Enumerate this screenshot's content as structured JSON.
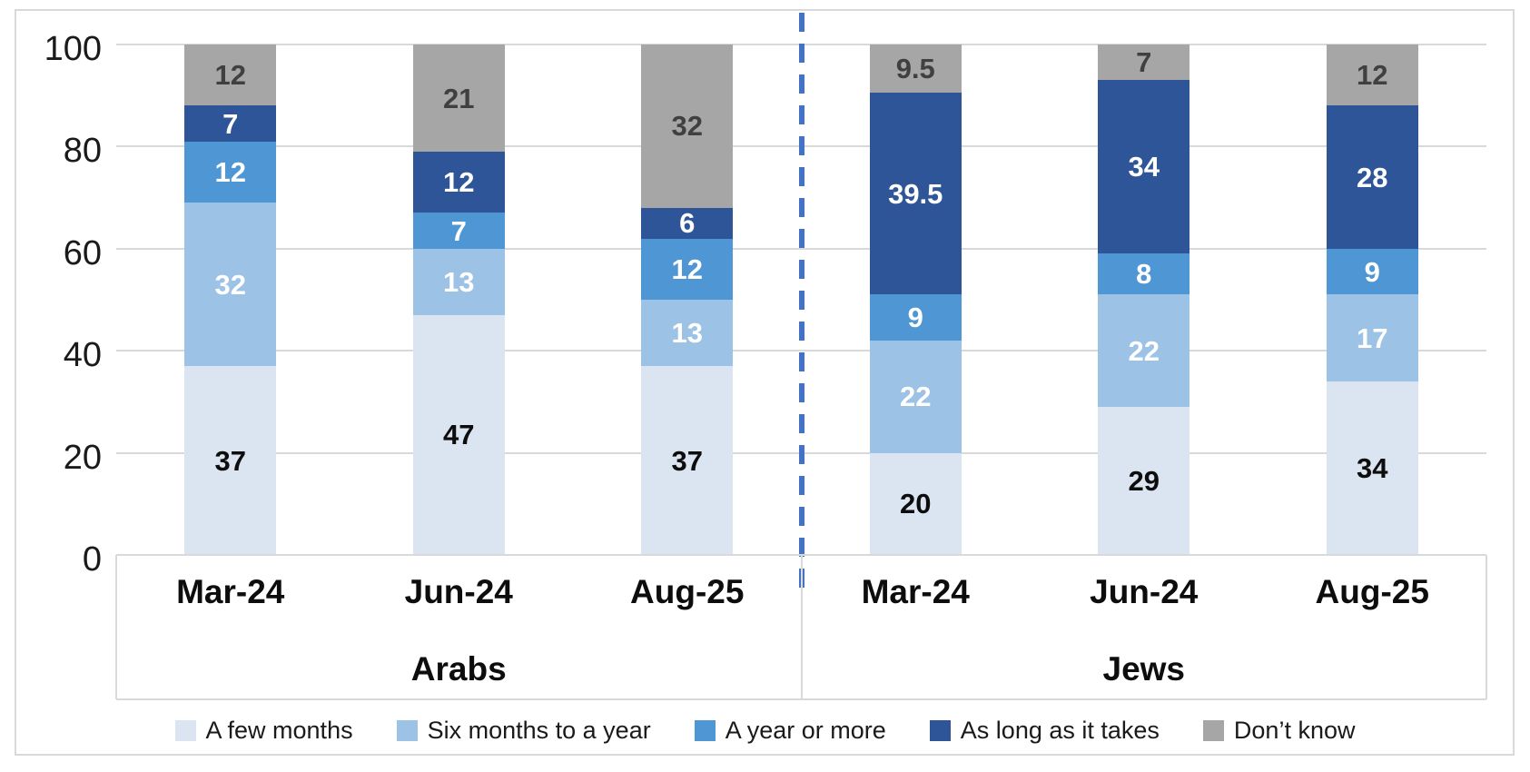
{
  "chart_data": {
    "type": "bar",
    "stacked": true,
    "title": "",
    "xlabel": "",
    "ylabel": "",
    "ylim": [
      0,
      100
    ],
    "yticks": [
      0,
      20,
      40,
      60,
      80,
      100
    ],
    "grid": true,
    "legend_position": "bottom",
    "groups": [
      "Arabs",
      "Jews"
    ],
    "categories": [
      "Mar-24",
      "Jun-24",
      "Aug-25"
    ],
    "series": [
      {
        "name": "A few months",
        "color": "#dbe5f1",
        "label_color": "#0d0d0d",
        "values": {
          "Arabs": [
            37,
            47,
            37
          ],
          "Jews": [
            20,
            29,
            34
          ]
        }
      },
      {
        "name": "Six months to a year",
        "color": "#9cc2e5",
        "label_color": "#ffffff",
        "values": {
          "Arabs": [
            32,
            13,
            13
          ],
          "Jews": [
            22,
            22,
            17
          ]
        }
      },
      {
        "name": "A year or more",
        "color": "#4f97d4",
        "label_color": "#ffffff",
        "values": {
          "Arabs": [
            12,
            7,
            12
          ],
          "Jews": [
            9,
            8,
            9
          ]
        }
      },
      {
        "name": "As long as it takes",
        "color": "#2e5597",
        "label_color": "#ffffff",
        "values": {
          "Arabs": [
            7,
            12,
            6
          ],
          "Jews": [
            39.5,
            34,
            28
          ]
        }
      },
      {
        "name": "Don’t know",
        "color": "#a6a6a6",
        "label_color": "#404040",
        "values": {
          "Arabs": [
            12,
            21,
            32
          ],
          "Jews": [
            9.5,
            7,
            12
          ]
        }
      }
    ],
    "separator_line_color": "#4472c4",
    "gridline_color": "#d9d9d9"
  }
}
